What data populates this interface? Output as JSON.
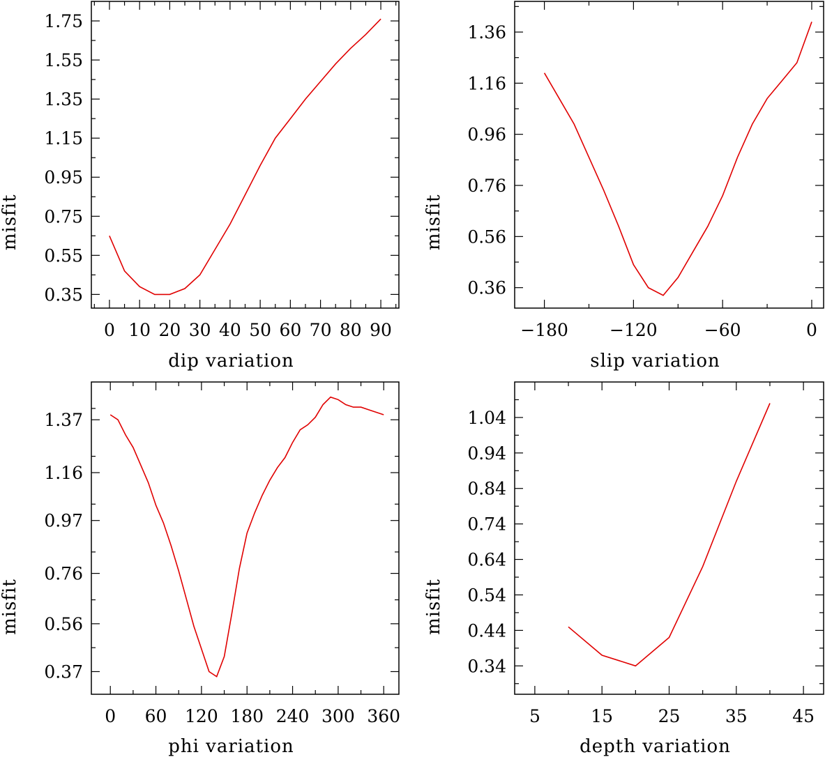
{
  "chart_data": [
    {
      "id": "dip",
      "type": "line",
      "xlabel": "dip     variation",
      "ylabel": "misfit",
      "xlim": [
        -6,
        96
      ],
      "ylim": [
        0.28,
        1.85
      ],
      "xticks": [
        0,
        10,
        20,
        30,
        40,
        50,
        60,
        70,
        80,
        90
      ],
      "xtick_labels": [
        "0",
        "10",
        "20",
        "30",
        "40",
        "50",
        "60",
        "70",
        "80",
        "90"
      ],
      "yticks": [
        0.35,
        0.55,
        0.75,
        0.95,
        1.15,
        1.35,
        1.55,
        1.75
      ],
      "ytick_labels": [
        "0.35",
        "0.55",
        "0.75",
        "0.95",
        "1.15",
        "1.35",
        "1.55",
        "1.75"
      ],
      "series": [
        {
          "color": "#e00000",
          "x": [
            0,
            5,
            10,
            15,
            20,
            25,
            30,
            35,
            40,
            45,
            50,
            55,
            60,
            65,
            70,
            75,
            80,
            85,
            90
          ],
          "y": [
            0.65,
            0.47,
            0.39,
            0.35,
            0.35,
            0.38,
            0.45,
            0.58,
            0.71,
            0.86,
            1.01,
            1.15,
            1.25,
            1.35,
            1.44,
            1.53,
            1.61,
            1.68,
            1.76
          ]
        }
      ]
    },
    {
      "id": "slip",
      "type": "line",
      "xlabel": "slip    variation",
      "ylabel": "misfit",
      "xlim": [
        -200,
        8
      ],
      "ylim": [
        0.28,
        1.48
      ],
      "xticks": [
        -180,
        -120,
        -60,
        0
      ],
      "xtick_labels": [
        "−180",
        "−120",
        "−60",
        "0"
      ],
      "yticks": [
        0.36,
        0.56,
        0.76,
        0.96,
        1.16,
        1.36
      ],
      "ytick_labels": [
        "0.36",
        "0.56",
        "0.76",
        "0.96",
        "1.16",
        "1.36"
      ],
      "series": [
        {
          "color": "#e00000",
          "x": [
            -180,
            -170,
            -160,
            -150,
            -140,
            -130,
            -120,
            -110,
            -100,
            -90,
            -80,
            -70,
            -60,
            -50,
            -40,
            -30,
            -20,
            -10,
            0
          ],
          "y": [
            1.2,
            1.1,
            1.0,
            0.87,
            0.74,
            0.6,
            0.45,
            0.36,
            0.33,
            0.4,
            0.5,
            0.6,
            0.72,
            0.87,
            1.0,
            1.1,
            1.17,
            1.24,
            1.4
          ]
        }
      ]
    },
    {
      "id": "phi",
      "type": "line",
      "xlabel": "phi     variation",
      "ylabel": "misfit",
      "xlim": [
        -25,
        380
      ],
      "ylim": [
        0.28,
        1.52
      ],
      "xticks": [
        0,
        60,
        120,
        180,
        240,
        300,
        360
      ],
      "xtick_labels": [
        "0",
        "60",
        "120",
        "180",
        "240",
        "300",
        "360"
      ],
      "yticks": [
        0.37,
        0.56,
        0.76,
        0.97,
        1.16,
        1.37
      ],
      "ytick_labels": [
        "0.37",
        "0.56",
        "0.76",
        "0.97",
        "1.16",
        "1.37"
      ],
      "series": [
        {
          "color": "#e00000",
          "x": [
            0,
            10,
            20,
            30,
            40,
            50,
            60,
            70,
            80,
            90,
            100,
            110,
            120,
            130,
            140,
            150,
            160,
            170,
            180,
            190,
            200,
            210,
            220,
            230,
            240,
            250,
            260,
            270,
            280,
            290,
            300,
            310,
            320,
            330,
            340,
            350,
            360
          ],
          "y": [
            1.39,
            1.37,
            1.31,
            1.26,
            1.19,
            1.12,
            1.03,
            0.96,
            0.87,
            0.77,
            0.66,
            0.55,
            0.46,
            0.37,
            0.35,
            0.43,
            0.6,
            0.78,
            0.92,
            1.0,
            1.07,
            1.13,
            1.18,
            1.22,
            1.28,
            1.33,
            1.35,
            1.38,
            1.43,
            1.46,
            1.45,
            1.43,
            1.42,
            1.42,
            1.41,
            1.4,
            1.39
          ]
        }
      ]
    },
    {
      "id": "depth",
      "type": "line",
      "xlabel": "depth  variation",
      "ylabel": "misfit",
      "xlim": [
        2,
        48
      ],
      "ylim": [
        0.26,
        1.14
      ],
      "xticks": [
        5,
        15,
        25,
        35,
        45
      ],
      "xtick_labels": [
        "5",
        "15",
        "25",
        "35",
        "45"
      ],
      "yticks": [
        0.34,
        0.44,
        0.54,
        0.64,
        0.74,
        0.84,
        0.94,
        1.04
      ],
      "ytick_labels": [
        "0.34",
        "0.44",
        "0.54",
        "0.64",
        "0.74",
        "0.84",
        "0.94",
        "1.04"
      ],
      "series": [
        {
          "color": "#e00000",
          "x": [
            10,
            15,
            20,
            25,
            30,
            35,
            40
          ],
          "y": [
            0.45,
            0.37,
            0.34,
            0.42,
            0.62,
            0.86,
            1.08
          ]
        }
      ]
    }
  ]
}
